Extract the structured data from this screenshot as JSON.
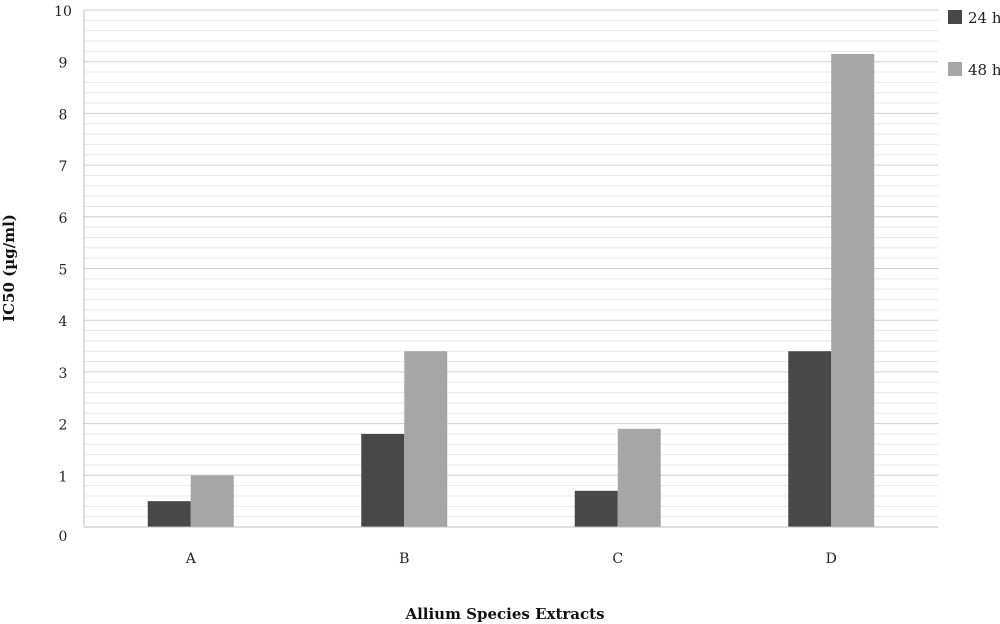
{
  "chart_data": {
    "type": "bar",
    "categories": [
      "A",
      "B",
      "C",
      "D"
    ],
    "series": [
      {
        "name": "24 h",
        "values": [
          0.5,
          1.8,
          0.7,
          3.4
        ],
        "color": "#484848"
      },
      {
        "name": "48 h",
        "values": [
          1.0,
          3.4,
          1.9,
          9.15
        ],
        "color": "#a6a6a6"
      }
    ],
    "xlabel": "Allium Species Extracts",
    "ylabel": "IC50 (µg/ml)",
    "ylim": [
      0,
      10
    ],
    "yticks": [
      "0",
      "1",
      "2",
      "3",
      "4",
      "5",
      "6",
      "7",
      "8",
      "9",
      "10"
    ],
    "grid": true,
    "legend_position": "top-right"
  }
}
